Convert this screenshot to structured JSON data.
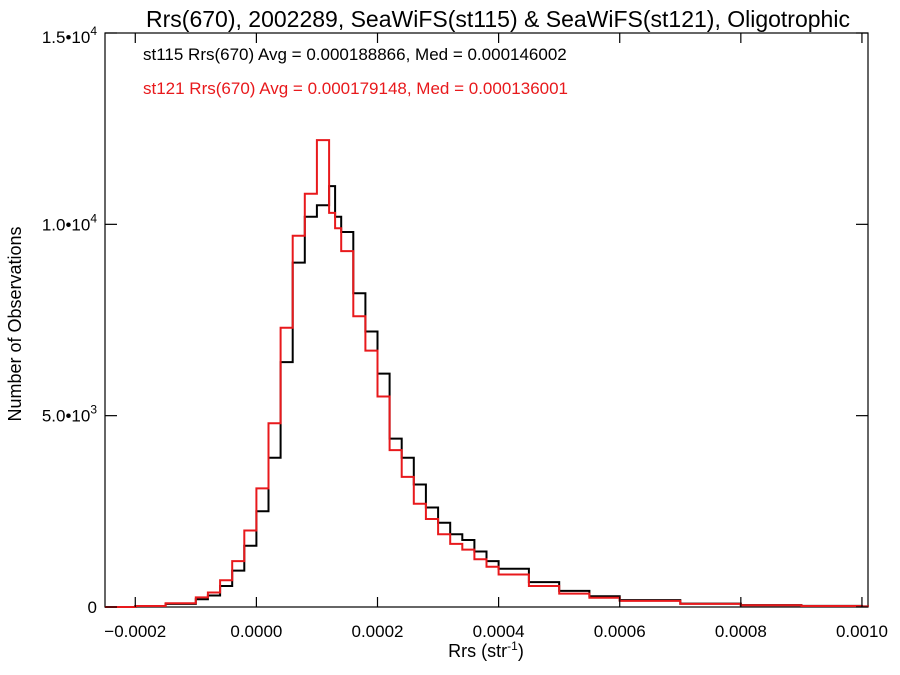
{
  "chart_data": {
    "type": "line",
    "title": "Rrs(670), 2002289, SeaWiFS(st115) & SeaWiFS(st121), Oligotrophic",
    "xlabel": "Rrs (str",
    "xlabel_sup": "-1",
    "xlabel_close": ")",
    "ylabel": "Number of Observations",
    "xlim": [
      -0.00025,
      0.00101
    ],
    "ylim": [
      0,
      15000
    ],
    "x_ticks": [
      {
        "value": -0.0002,
        "label": "-0.0002"
      },
      {
        "value": 0.0,
        "label": "0.0000"
      },
      {
        "value": 0.0002,
        "label": "0.0002"
      },
      {
        "value": 0.0004,
        "label": "0.0004"
      },
      {
        "value": 0.0006,
        "label": "0.0006"
      },
      {
        "value": 0.0008,
        "label": "0.0008"
      },
      {
        "value": 0.001,
        "label": "0.0010"
      }
    ],
    "y_ticks": [
      {
        "value": 0,
        "base": "0",
        "sup": ""
      },
      {
        "value": 5000,
        "base": "5.0•10",
        "sup": "3"
      },
      {
        "value": 10000,
        "base": "1.0•10",
        "sup": "4"
      },
      {
        "value": 15000,
        "base": "1.5•10",
        "sup": "4"
      }
    ],
    "grid": false,
    "annotations": [
      {
        "text": "st115 Rrs(670) Avg = 0.000188866, Med = 0.000146002",
        "color": "#000000"
      },
      {
        "text": "st121 Rrs(670) Avg = 0.000179148, Med = 0.000136001",
        "color": "#e8191c"
      }
    ],
    "series": [
      {
        "color": "#000000",
        "style": "step",
        "x": [
          -0.00025,
          -0.0002,
          -0.00015,
          -0.0001,
          -8e-05,
          -6e-05,
          -4e-05,
          -2e-05,
          0.0,
          2e-05,
          4e-05,
          6e-05,
          8e-05,
          0.0001,
          0.00012,
          0.00013,
          0.00014,
          0.00016,
          0.00018,
          0.0002,
          0.00022,
          0.00024,
          0.00026,
          0.00028,
          0.0003,
          0.00032,
          0.00034,
          0.00036,
          0.00038,
          0.0004,
          0.00045,
          0.0005,
          0.00055,
          0.0006,
          0.0007,
          0.0008,
          0.0009,
          0.001,
          0.00101
        ],
        "y": [
          0,
          20,
          80,
          200,
          300,
          550,
          950,
          1600,
          2500,
          3900,
          6400,
          9000,
          10200,
          10500,
          11000,
          10200,
          9800,
          8200,
          7200,
          6100,
          4400,
          3900,
          3200,
          2600,
          2200,
          1900,
          1750,
          1450,
          1200,
          1000,
          650,
          420,
          280,
          180,
          90,
          50,
          30,
          15,
          10
        ]
      },
      {
        "color": "#e8191c",
        "style": "step",
        "x": [
          -0.00025,
          -0.0002,
          -0.00015,
          -0.0001,
          -8e-05,
          -6e-05,
          -4e-05,
          -2e-05,
          0.0,
          2e-05,
          4e-05,
          6e-05,
          8e-05,
          0.0001,
          0.00012,
          0.00013,
          0.00014,
          0.00016,
          0.00018,
          0.0002,
          0.00022,
          0.00024,
          0.00026,
          0.00028,
          0.0003,
          0.00032,
          0.00034,
          0.00036,
          0.00038,
          0.0004,
          0.00045,
          0.0005,
          0.00055,
          0.0006,
          0.0007,
          0.0008,
          0.0009,
          0.001,
          0.00101
        ],
        "y": [
          0,
          25,
          100,
          250,
          380,
          700,
          1200,
          2000,
          3100,
          4800,
          7300,
          9700,
          10800,
          12200,
          10300,
          9900,
          9300,
          7600,
          6700,
          5500,
          4100,
          3400,
          2700,
          2300,
          1900,
          1650,
          1500,
          1250,
          1050,
          850,
          550,
          350,
          240,
          160,
          80,
          45,
          25,
          12,
          8
        ]
      }
    ]
  }
}
